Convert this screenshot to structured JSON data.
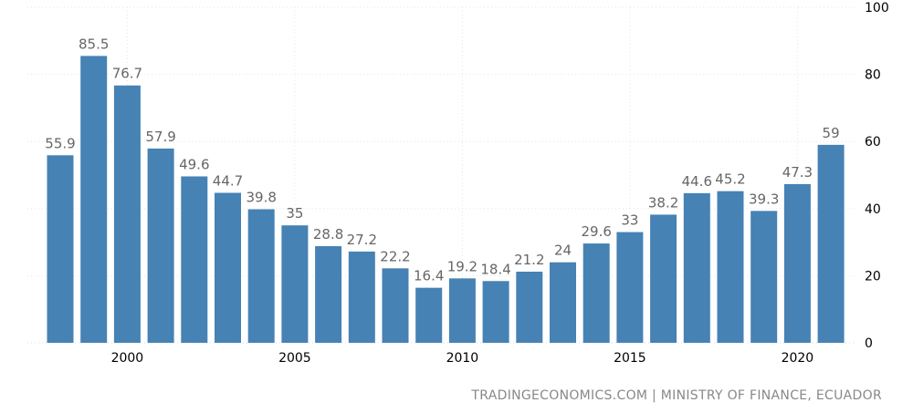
{
  "chart_data": {
    "type": "bar",
    "x": [
      1998,
      1999,
      2000,
      2001,
      2002,
      2003,
      2004,
      2005,
      2006,
      2007,
      2008,
      2009,
      2010,
      2011,
      2012,
      2013,
      2014,
      2015,
      2016,
      2017,
      2018,
      2019,
      2020,
      2021
    ],
    "values": [
      55.9,
      85.5,
      76.7,
      57.9,
      49.6,
      44.7,
      39.8,
      35,
      28.8,
      27.2,
      22.2,
      16.4,
      19.2,
      18.4,
      21.2,
      24,
      29.6,
      33,
      38.2,
      44.6,
      45.2,
      39.3,
      47.3,
      59
    ],
    "value_labels": [
      "55.9",
      "85.5",
      "76.7",
      "57.9",
      "49.6",
      "44.7",
      "39.8",
      "35",
      "28.8",
      "27.2",
      "22.2",
      "16.4",
      "19.2",
      "18.4",
      "21.2",
      "24",
      "29.6",
      "33",
      "38.2",
      "44.6",
      "45.2",
      "39.3",
      "47.3",
      "59"
    ],
    "x_ticks": [
      2000,
      2005,
      2010,
      2015,
      2020
    ],
    "x_tick_labels": [
      "2000",
      "2005",
      "2010",
      "2015",
      "2020"
    ],
    "y_ticks": [
      0,
      20,
      40,
      60,
      80,
      100
    ],
    "y_tick_labels": [
      "0",
      "20",
      "40",
      "60",
      "80",
      "100"
    ],
    "ylim": [
      0,
      100
    ],
    "y_axis_side": "right",
    "grid": true,
    "bar_color": "#4682b4",
    "title": "",
    "xlabel": "",
    "ylabel": ""
  },
  "source": "TRADINGECONOMICS.COM | MINISTRY OF FINANCE, ECUADOR"
}
